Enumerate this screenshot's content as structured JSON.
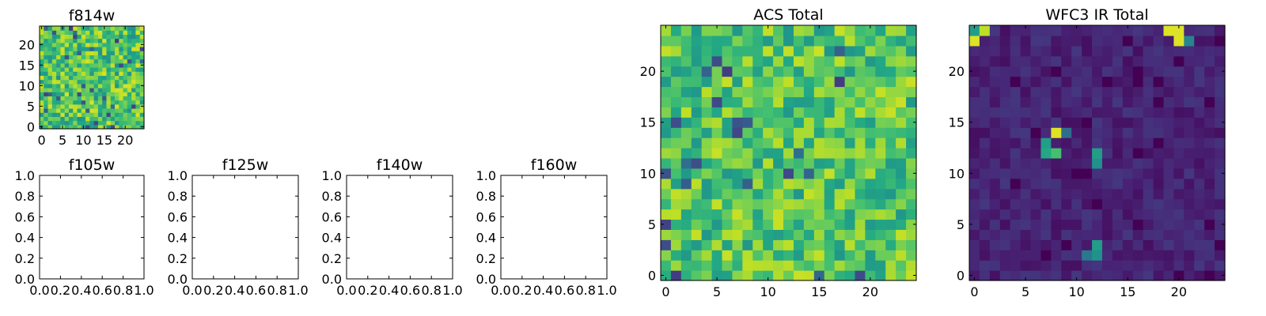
{
  "chart_data": [
    {
      "type": "heatmap",
      "title": "f814w",
      "colormap": "viridis",
      "grid_size": [
        25,
        25
      ],
      "xlim": [
        0,
        24
      ],
      "ylim": [
        0,
        24
      ],
      "xticks": [
        "0",
        "5",
        "10",
        "15",
        "20"
      ],
      "yticks": [
        "0",
        "5",
        "10",
        "15",
        "20"
      ],
      "value_range": [
        0,
        1
      ],
      "mean_level": 0.72,
      "spread": 0.22,
      "seed": 11,
      "hotspots": []
    },
    {
      "type": "heatmap",
      "title": "f105w",
      "xlim": [
        0,
        1
      ],
      "ylim": [
        0,
        1
      ],
      "xticks": [
        "0.0",
        "0.2",
        "0.4",
        "0.6",
        "0.8",
        "1.0"
      ],
      "yticks": [
        "0.0",
        "0.2",
        "0.4",
        "0.6",
        "0.8",
        "1.0"
      ],
      "empty": true
    },
    {
      "type": "heatmap",
      "title": "f125w",
      "xlim": [
        0,
        1
      ],
      "ylim": [
        0,
        1
      ],
      "xticks": [
        "0.0",
        "0.2",
        "0.4",
        "0.6",
        "0.8",
        "1.0"
      ],
      "yticks": [
        "0.0",
        "0.2",
        "0.4",
        "0.6",
        "0.8",
        "1.0"
      ],
      "empty": true
    },
    {
      "type": "heatmap",
      "title": "f140w",
      "xlim": [
        0,
        1
      ],
      "ylim": [
        0,
        1
      ],
      "xticks": [
        "0.0",
        "0.2",
        "0.4",
        "0.6",
        "0.8",
        "1.0"
      ],
      "yticks": [
        "0.0",
        "0.2",
        "0.4",
        "0.6",
        "0.8",
        "1.0"
      ],
      "empty": true
    },
    {
      "type": "heatmap",
      "title": "f160w",
      "xlim": [
        0,
        1
      ],
      "ylim": [
        0,
        1
      ],
      "xticks": [
        "0.0",
        "0.2",
        "0.4",
        "0.6",
        "0.8",
        "1.0"
      ],
      "yticks": [
        "0.0",
        "0.2",
        "0.4",
        "0.6",
        "0.8",
        "1.0"
      ],
      "empty": true
    },
    {
      "type": "heatmap",
      "title": "ACS Total",
      "colormap": "viridis",
      "grid_size": [
        25,
        25
      ],
      "xlim": [
        0,
        24
      ],
      "ylim": [
        0,
        24
      ],
      "xticks": [
        "0",
        "5",
        "10",
        "15",
        "20"
      ],
      "yticks": [
        "0",
        "5",
        "10",
        "15",
        "20"
      ],
      "value_range": [
        0,
        1
      ],
      "mean_level": 0.72,
      "spread": 0.2,
      "seed": 37,
      "hotspots": []
    },
    {
      "type": "heatmap",
      "title": "WFC3 IR Total",
      "colormap": "viridis",
      "grid_size": [
        25,
        25
      ],
      "xlim": [
        0,
        24
      ],
      "ylim": [
        0,
        24
      ],
      "xticks": [
        "0",
        "5",
        "10",
        "15",
        "20"
      ],
      "yticks": [
        "0",
        "5",
        "10",
        "15",
        "20"
      ],
      "value_range": [
        0,
        1
      ],
      "mean_level": 0.1,
      "spread": 0.06,
      "seed": 73,
      "hotspots": [
        {
          "x": 0,
          "y": 23,
          "v": 0.95
        },
        {
          "x": 1,
          "y": 24,
          "v": 0.9
        },
        {
          "x": 0,
          "y": 24,
          "v": 0.55
        },
        {
          "x": 19,
          "y": 24,
          "v": 0.95
        },
        {
          "x": 20,
          "y": 24,
          "v": 0.95
        },
        {
          "x": 20,
          "y": 23,
          "v": 0.95
        },
        {
          "x": 21,
          "y": 23,
          "v": 0.45
        },
        {
          "x": 8,
          "y": 14,
          "v": 0.95
        },
        {
          "x": 7,
          "y": 13,
          "v": 0.55
        },
        {
          "x": 7,
          "y": 12,
          "v": 0.6
        },
        {
          "x": 8,
          "y": 12,
          "v": 0.7
        },
        {
          "x": 9,
          "y": 14,
          "v": 0.35
        },
        {
          "x": 12,
          "y": 12,
          "v": 0.55
        },
        {
          "x": 12,
          "y": 11,
          "v": 0.5
        },
        {
          "x": 12,
          "y": 3,
          "v": 0.55
        },
        {
          "x": 12,
          "y": 2,
          "v": 0.5
        },
        {
          "x": 11,
          "y": 2,
          "v": 0.4
        }
      ]
    }
  ]
}
